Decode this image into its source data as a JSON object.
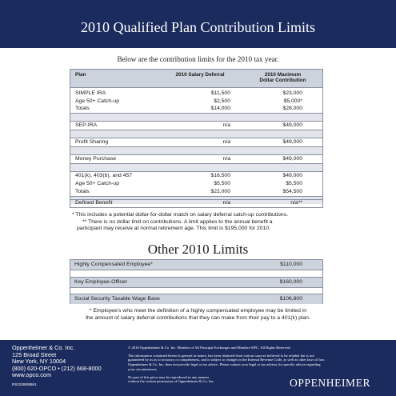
{
  "header": {
    "title": "2010 Qualified Plan Contribution Limits"
  },
  "intro": "Below are the contribution limits for the 2010 tax year.",
  "contribution_table": {
    "headers": {
      "plan": "Plan",
      "deferral": "2010 Salary Deferral",
      "max_line1": "2010 Maximum",
      "max_line2": "Dollar Contribution"
    },
    "groups": [
      {
        "rows": [
          {
            "plan": "SIMPLE IRA",
            "deferral": "$11,500",
            "max": "$23,000"
          },
          {
            "plan": "Age 50+ Catch-up",
            "deferral": "$2,500",
            "max": "$5,000*"
          },
          {
            "plan": "Totals",
            "deferral": "$14,000",
            "max": "$28,000"
          }
        ]
      },
      {
        "rows": [
          {
            "plan": "SEP-IRA",
            "deferral": "n/a",
            "max": "$49,000"
          }
        ]
      },
      {
        "rows": [
          {
            "plan": "Profit Sharing",
            "deferral": "n/a",
            "max": "$49,000"
          }
        ]
      },
      {
        "rows": [
          {
            "plan": "Money Purchase",
            "deferral": "n/a",
            "max": "$49,000"
          }
        ]
      },
      {
        "rows": [
          {
            "plan": "401(k), 403(b), and 457",
            "deferral": "$16,500",
            "max": "$49,000"
          },
          {
            "plan": "Age 50+ Catch-up",
            "deferral": "$5,500",
            "max": "$5,500"
          },
          {
            "plan": "Totals",
            "deferral": "$22,000",
            "max": "$54,500"
          }
        ]
      },
      {
        "rows": [
          {
            "plan": "Defined Benefit",
            "deferral": "n/a",
            "max": "n/a**"
          }
        ]
      }
    ]
  },
  "footnote1": {
    "line1": "* This includes a potential dollar-for-dollar match on salary deferral catch-up contributions.",
    "line2": "** There is no dollar limit on contributions. A limit applies to the annual benefit a",
    "line3": "participant may receive at normal retirement age. This limit is $195,000 for 2010."
  },
  "other_limits": {
    "title": "Other 2010 Limits",
    "rows": [
      {
        "label": "Highly Compensated Employee*",
        "value": "$110,000"
      },
      {
        "label": "Key Employee-Officer",
        "value": "$160,000"
      },
      {
        "label": "Social Security Taxable Wage Base",
        "value": "$106,800"
      }
    ]
  },
  "footnote2": {
    "line1": "* Employee's who meet the definition of a highly compensated employee may be limited in",
    "line2": "the amount of salary deferral contributions that they can make from their pay to a 401(k) plan."
  },
  "footer": {
    "company": "Oppenheimer & Co. Inc.",
    "street": "125 Broad Street",
    "city": "New York, NY 10004",
    "phone": "(800) 620-OPCO • (212) 668-8000",
    "web": "www.opco.com",
    "code": "RS1029088M1",
    "legal": [
      "© 2010 Oppenheimer & Co. Inc. Member of All Principal Exchanges and Member SIPC. All Rights Reserved.",
      "The information contained herein is general in nature, has been obtained from various sources believed to be reliable but is not",
      "guaranteed by us as to accuracy or completeness, and is subject to changes in the Internal Revenue Code, as well as other laws of law.",
      "Oppenheimer & Co. Inc. does not provide legal or tax advice. Please contact your legal or tax advisor for specific advice regarding",
      "your circumstances.",
      "No part of this piece may be reproduced in any manner",
      "without the written permission of Oppenheimer & Co. Inc."
    ],
    "logo": "OPPENHEIMER"
  }
}
